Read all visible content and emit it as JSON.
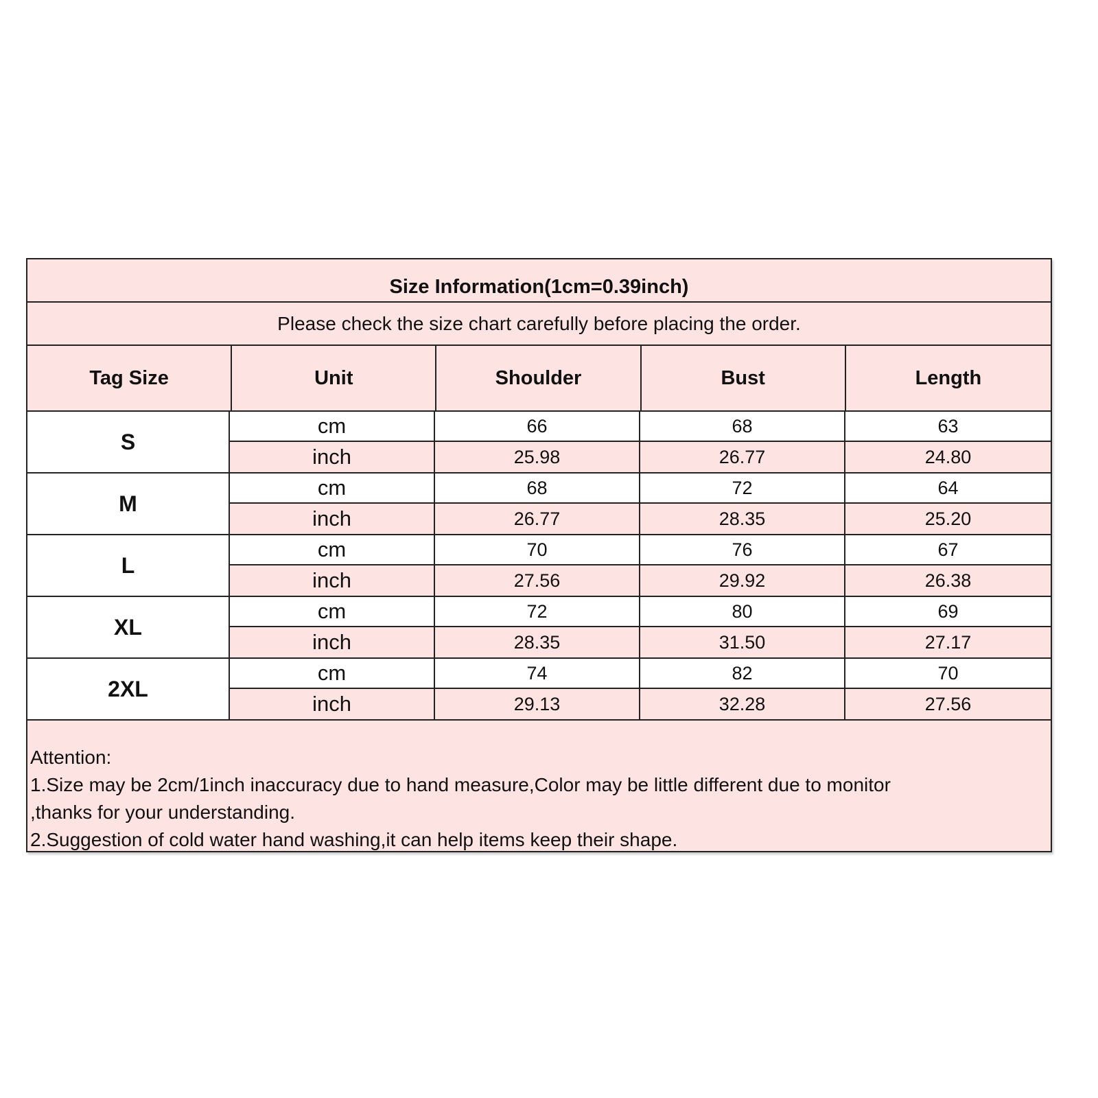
{
  "title": "Size Information(1cm=0.39inch)",
  "subtitle": "Please check the size chart carefully before placing the order.",
  "colors": {
    "header_bg": "#fde4e2",
    "inch_row_bg": "#fde4e2",
    "cm_row_bg": "#ffffff",
    "border": "#222222"
  },
  "columns": [
    "Tag Size",
    "Unit",
    "Shoulder",
    "Bust",
    "Length"
  ],
  "sizes": [
    {
      "tag": "S",
      "rows": [
        {
          "unit": "cm",
          "values": [
            "66",
            "68",
            "63"
          ]
        },
        {
          "unit": "inch",
          "values": [
            "25.98",
            "26.77",
            "24.80"
          ]
        }
      ]
    },
    {
      "tag": "M",
      "rows": [
        {
          "unit": "cm",
          "values": [
            "68",
            "72",
            "64"
          ]
        },
        {
          "unit": "inch",
          "values": [
            "26.77",
            "28.35",
            "25.20"
          ]
        }
      ]
    },
    {
      "tag": "L",
      "rows": [
        {
          "unit": "cm",
          "values": [
            "70",
            "76",
            "67"
          ]
        },
        {
          "unit": "inch",
          "values": [
            "27.56",
            "29.92",
            "26.38"
          ]
        }
      ]
    },
    {
      "tag": "XL",
      "rows": [
        {
          "unit": "cm",
          "values": [
            "72",
            "80",
            "69"
          ]
        },
        {
          "unit": "inch",
          "values": [
            "28.35",
            "31.50",
            "27.17"
          ]
        }
      ]
    },
    {
      "tag": "2XL",
      "rows": [
        {
          "unit": "cm",
          "values": [
            "74",
            "82",
            "70"
          ]
        },
        {
          "unit": "inch",
          "values": [
            "29.13",
            "32.28",
            "27.56"
          ]
        }
      ]
    }
  ],
  "notes": [
    "Attention:",
    "1.Size may be 2cm/1inch inaccuracy due to hand measure,Color may be little different due to monitor",
    ",thanks for your understanding.",
    "2.Suggestion of cold water hand washing,it can help items keep their shape."
  ]
}
